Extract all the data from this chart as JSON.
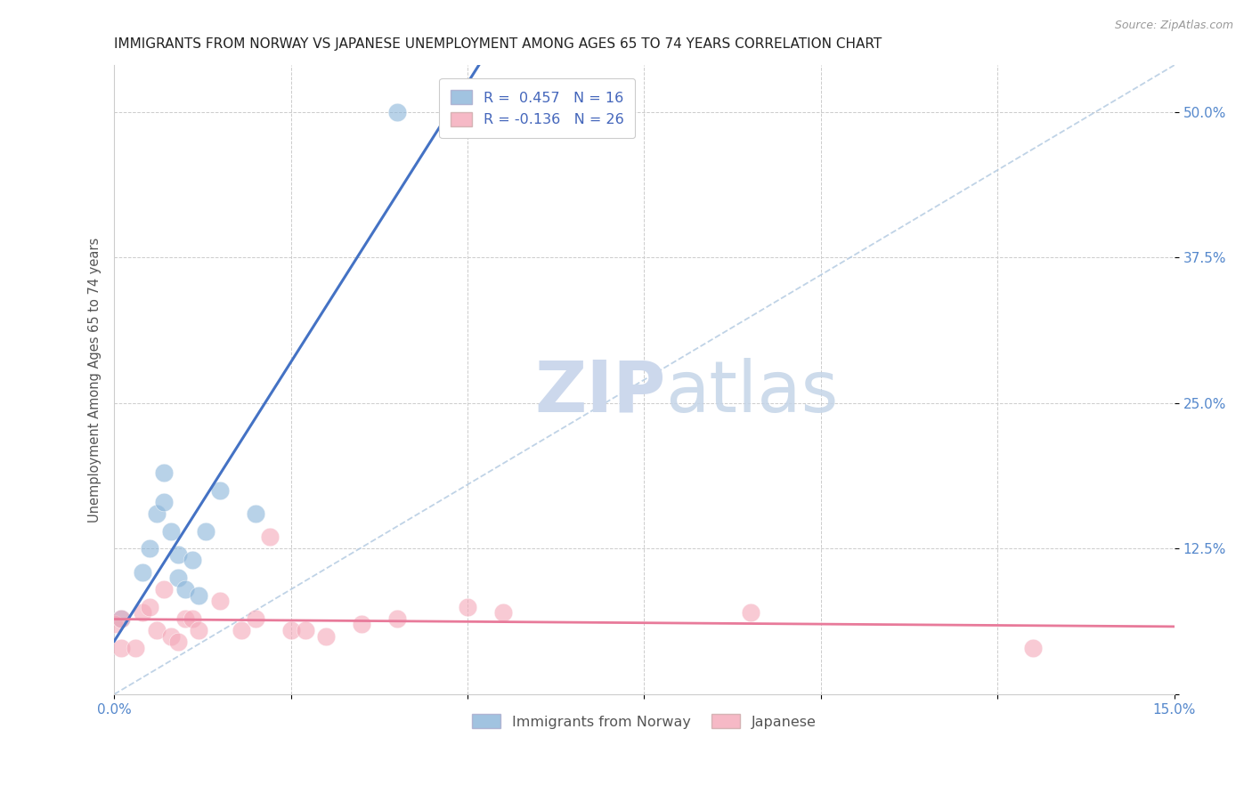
{
  "title": "IMMIGRANTS FROM NORWAY VS JAPANESE UNEMPLOYMENT AMONG AGES 65 TO 74 YEARS CORRELATION CHART",
  "source": "Source: ZipAtlas.com",
  "ylabel": "Unemployment Among Ages 65 to 74 years",
  "xlim": [
    0.0,
    0.15
  ],
  "ylim": [
    0.0,
    0.54
  ],
  "xticks": [
    0.0,
    0.025,
    0.05,
    0.075,
    0.1,
    0.125,
    0.15
  ],
  "yticks": [
    0.0,
    0.125,
    0.25,
    0.375,
    0.5
  ],
  "blue_R": 0.457,
  "blue_N": 16,
  "pink_R": -0.136,
  "pink_N": 26,
  "blue_color": "#8ab4d9",
  "pink_color": "#f4a8b8",
  "blue_line_color": "#4472c4",
  "pink_line_color": "#e87a9a",
  "diag_line_color": "#b0c8e0",
  "background_color": "#ffffff",
  "legend_label_blue": "Immigrants from Norway",
  "legend_label_pink": "Japanese",
  "blue_scatter_x": [
    0.001,
    0.004,
    0.005,
    0.006,
    0.007,
    0.007,
    0.008,
    0.009,
    0.009,
    0.01,
    0.011,
    0.012,
    0.013,
    0.015,
    0.02,
    0.04
  ],
  "blue_scatter_y": [
    0.065,
    0.105,
    0.125,
    0.155,
    0.19,
    0.165,
    0.14,
    0.12,
    0.1,
    0.09,
    0.115,
    0.085,
    0.14,
    0.175,
    0.155,
    0.5
  ],
  "pink_scatter_x": [
    0.0,
    0.001,
    0.001,
    0.003,
    0.004,
    0.005,
    0.006,
    0.007,
    0.008,
    0.009,
    0.01,
    0.011,
    0.012,
    0.015,
    0.018,
    0.02,
    0.022,
    0.025,
    0.027,
    0.03,
    0.035,
    0.04,
    0.05,
    0.055,
    0.09,
    0.13
  ],
  "pink_scatter_y": [
    0.06,
    0.04,
    0.065,
    0.04,
    0.07,
    0.075,
    0.055,
    0.09,
    0.05,
    0.045,
    0.065,
    0.065,
    0.055,
    0.08,
    0.055,
    0.065,
    0.135,
    0.055,
    0.055,
    0.05,
    0.06,
    0.065,
    0.075,
    0.07,
    0.07,
    0.04
  ],
  "title_fontsize": 11,
  "axis_label_fontsize": 10.5,
  "tick_fontsize": 11,
  "legend_fontsize": 11.5
}
